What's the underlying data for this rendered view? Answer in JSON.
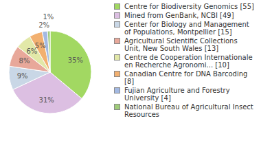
{
  "chart_data": {
    "type": "pie",
    "categories": [
      "Centre for Biodiversity Genomics [55]",
      "Mined from GenBank, NCBI [49]",
      "Center for Biology and Management of Populations, Montpellier [15]",
      "Agricultural Scientific Collections Unit, New South Wales [13]",
      "Centre de Cooperation Internationale en Recherche Agronomi... [10]",
      "Canadian Centre for DNA Barcoding [8]",
      "Fujian Agriculture and Forestry University [4]",
      "National Bureau of Agricultural Insect Resources"
    ],
    "values": [
      35,
      31,
      9,
      8,
      6,
      5,
      2,
      1
    ],
    "value_labels": [
      "35%",
      "31%",
      "9%",
      "8%",
      "6%",
      "5%",
      "2%",
      "1%"
    ],
    "colors": [
      "#a2d862",
      "#dcbfe2",
      "#c9d7e6",
      "#e8a89a",
      "#e2e8a8",
      "#f2b070",
      "#a3b9e2",
      "#9fcc7a"
    ],
    "data_labels": true,
    "legend": "right"
  }
}
